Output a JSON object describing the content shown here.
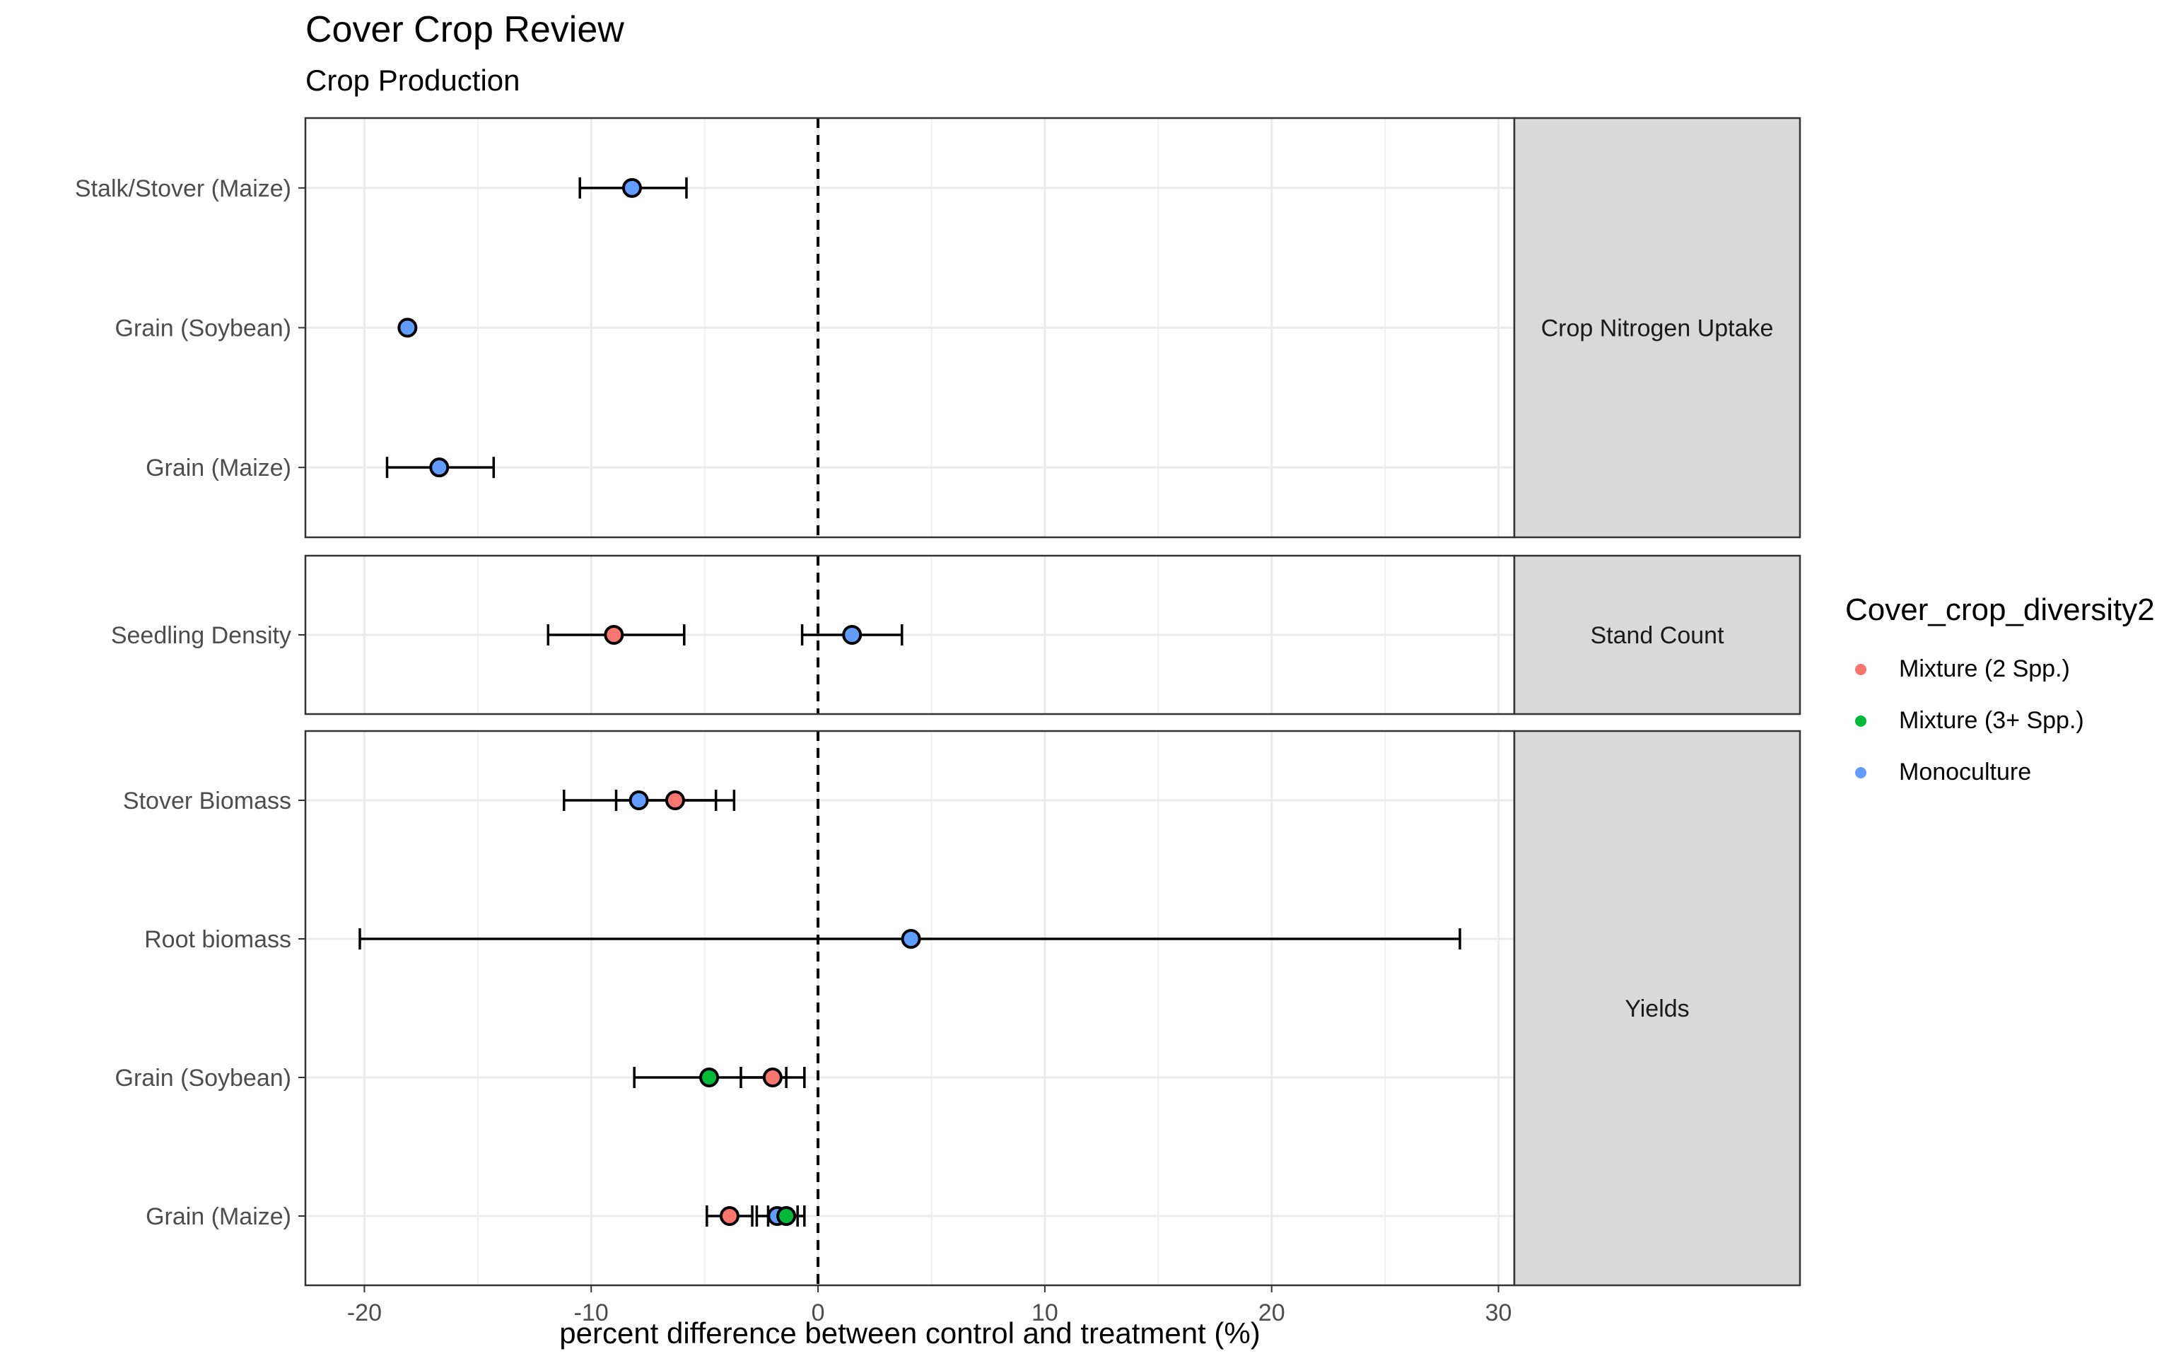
{
  "title": "Cover Crop Review",
  "subtitle": "Crop Production",
  "colors": {
    "Mixture (2 Spp.)": "#F8766D",
    "Mixture (3+ Spp.)": "#00BA38",
    "Monoculture": "#619CFF"
  },
  "chart_data": {
    "type": "scatter",
    "subtype": "forest-plot-with-error-bars",
    "title": "Cover Crop Review",
    "subtitle": "Crop Production",
    "xlabel": "percent difference between control and treatment (%)",
    "xlim": [
      -22.6,
      30.7
    ],
    "x_ticks": [
      -20,
      -10,
      0,
      10,
      20,
      30
    ],
    "x_tick_labels": [
      "-20",
      "-10",
      "0",
      "10",
      "20",
      "30"
    ],
    "reference_line": 0,
    "grid": true,
    "legend": {
      "title": "Cover_crop_diversity2",
      "position": "right",
      "entries": [
        "Mixture (2 Spp.)",
        "Mixture (3+ Spp.)",
        "Monoculture"
      ]
    },
    "facets": [
      {
        "label": "Crop Nitrogen Uptake",
        "rows": [
          "Stalk/Stover (Maize)",
          "Grain (Soybean)",
          "Grain (Maize)"
        ],
        "points": [
          {
            "row": "Stalk/Stover (Maize)",
            "group": "Monoculture",
            "x": -8.2,
            "lo": -10.5,
            "hi": -5.8
          },
          {
            "row": "Grain (Soybean)",
            "group": "Monoculture",
            "x": -18.1,
            "lo": -18.1,
            "hi": -18.1
          },
          {
            "row": "Grain (Maize)",
            "group": "Monoculture",
            "x": -16.7,
            "lo": -19.0,
            "hi": -14.3
          }
        ]
      },
      {
        "label": "Stand Count",
        "rows": [
          "Seedling Density"
        ],
        "points": [
          {
            "row": "Seedling Density",
            "group": "Mixture (2 Spp.)",
            "x": -9.0,
            "lo": -11.9,
            "hi": -5.9
          },
          {
            "row": "Seedling Density",
            "group": "Monoculture",
            "x": 1.5,
            "lo": -0.7,
            "hi": 3.7
          }
        ]
      },
      {
        "label": "Yields",
        "rows": [
          "Stover Biomass",
          "Root biomass",
          "Grain (Soybean)",
          "Grain (Maize)"
        ],
        "points": [
          {
            "row": "Stover Biomass",
            "group": "Monoculture",
            "x": -7.9,
            "lo": -11.2,
            "hi": -4.5
          },
          {
            "row": "Stover Biomass",
            "group": "Mixture (2 Spp.)",
            "x": -6.3,
            "lo": -8.9,
            "hi": -3.7
          },
          {
            "row": "Root biomass",
            "group": "Monoculture",
            "x": 4.1,
            "lo": -20.2,
            "hi": 28.3
          },
          {
            "row": "Grain (Soybean)",
            "group": "Mixture (3+ Spp.)",
            "x": -4.8,
            "lo": -8.1,
            "hi": -1.4
          },
          {
            "row": "Grain (Soybean)",
            "group": "Mixture (2 Spp.)",
            "x": -2.0,
            "lo": -3.4,
            "hi": -0.6
          },
          {
            "row": "Grain (Maize)",
            "group": "Mixture (2 Spp.)",
            "x": -3.9,
            "lo": -4.9,
            "hi": -2.9
          },
          {
            "row": "Grain (Maize)",
            "group": "Monoculture",
            "x": -1.8,
            "lo": -2.7,
            "hi": -0.9
          },
          {
            "row": "Grain (Maize)",
            "group": "Mixture (3+ Spp.)",
            "x": -1.4,
            "lo": -2.2,
            "hi": -0.6
          }
        ]
      }
    ]
  }
}
